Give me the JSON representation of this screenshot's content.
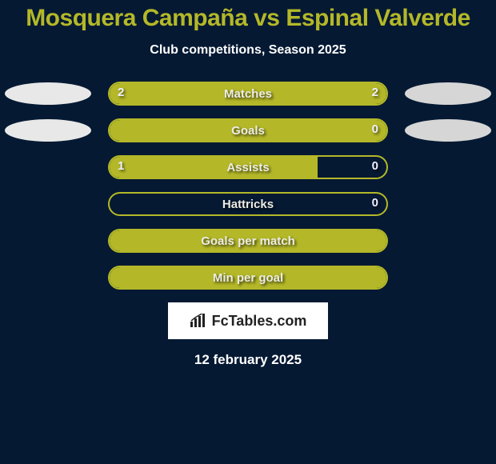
{
  "title": {
    "left_name": "Mosquera Campaña",
    "vs": "vs",
    "right_name": "Espinal Valverde",
    "color": "#b4b828",
    "fontsize": 30
  },
  "subtitle": {
    "text": "Club competitions, Season 2025",
    "fontsize": 16
  },
  "chart": {
    "type": "dual-bar-comparison",
    "track_width": 350,
    "track_height": 30,
    "border_radius": 15,
    "border_color": "#b4b828",
    "fill_color": "#b4b828",
    "background_color": "#051933",
    "value_color": "#eeeeff",
    "label_color": "#ecebe4",
    "ellipse_left_color": "#e8e8e8",
    "ellipse_right_color": "#d6d6d6",
    "rows": [
      {
        "label": "Matches",
        "left_value": "2",
        "right_value": "2",
        "left_fill_pct": 50,
        "right_fill_pct": 50,
        "show_left_value": true,
        "show_right_value": true,
        "show_ellipses": true
      },
      {
        "label": "Goals",
        "left_value": "",
        "right_value": "0",
        "left_fill_pct": 100,
        "right_fill_pct": 0,
        "show_left_value": false,
        "show_right_value": true,
        "show_ellipses": true
      },
      {
        "label": "Assists",
        "left_value": "1",
        "right_value": "0",
        "left_fill_pct": 75,
        "right_fill_pct": 0,
        "show_left_value": true,
        "show_right_value": true,
        "show_ellipses": false
      },
      {
        "label": "Hattricks",
        "left_value": "",
        "right_value": "0",
        "left_fill_pct": 0,
        "right_fill_pct": 0,
        "show_left_value": false,
        "show_right_value": true,
        "show_ellipses": false
      },
      {
        "label": "Goals per match",
        "left_value": "",
        "right_value": "",
        "left_fill_pct": 100,
        "right_fill_pct": 0,
        "show_left_value": false,
        "show_right_value": false,
        "show_ellipses": false
      },
      {
        "label": "Min per goal",
        "left_value": "",
        "right_value": "",
        "left_fill_pct": 100,
        "right_fill_pct": 0,
        "show_left_value": false,
        "show_right_value": false,
        "show_ellipses": false
      }
    ]
  },
  "logo": {
    "text": "FcTables.com",
    "icon_name": "bar-chart-icon",
    "background": "#ffffff",
    "text_color": "#222222"
  },
  "date": {
    "text": "12 february 2025",
    "fontsize": 17
  }
}
